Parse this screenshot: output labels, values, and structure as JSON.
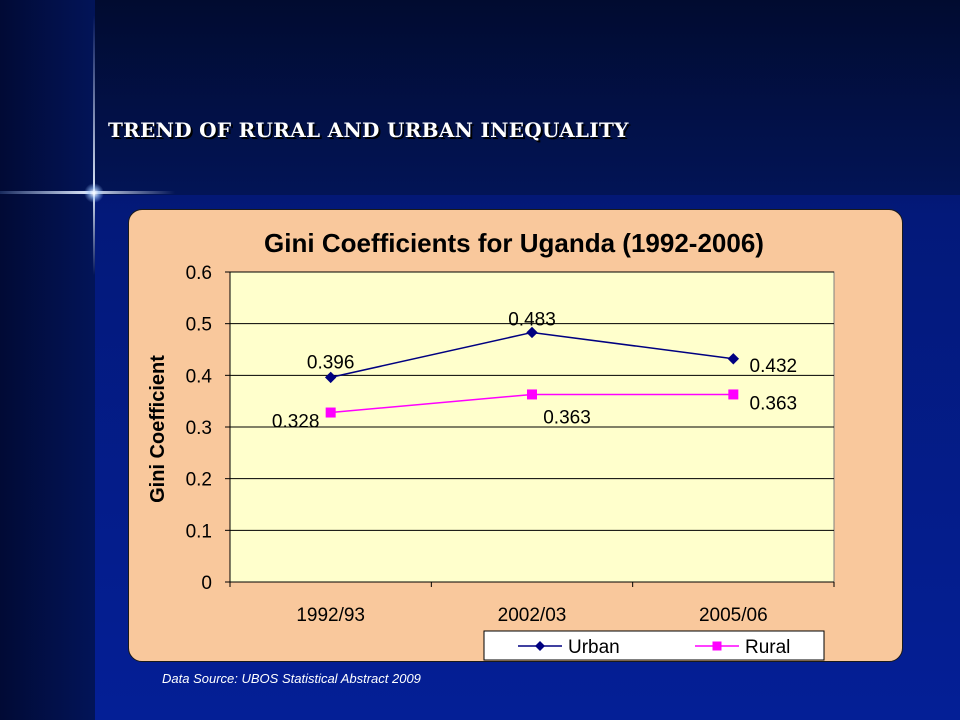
{
  "slide": {
    "title": "TREND OF RURAL AND URBAN INEQUALITY",
    "source": "Data Source: UBOS Statistical Abstract 2009"
  },
  "colors": {
    "urban": "#000080",
    "rural": "#ff00ff",
    "panel": "#f9c89c",
    "plot_area": "#ffffcc"
  },
  "chart_data": {
    "type": "line",
    "title": "Gini Coefficients for Uganda (1992-2006)",
    "xlabel": "",
    "ylabel": "Gini Coefficient",
    "categories": [
      "1992/93",
      "2002/03",
      "2005/06"
    ],
    "ylim": [
      0,
      0.6
    ],
    "yticks": [
      "0",
      "0.1",
      "0.2",
      "0.3",
      "0.4",
      "0.5",
      "0.6"
    ],
    "grid": "horizontal",
    "legend_position": "bottom",
    "series": [
      {
        "name": "Urban",
        "values": [
          0.396,
          0.483,
          0.432
        ],
        "labels": [
          "0.396",
          "0.483",
          "0.432"
        ],
        "marker": "diamond"
      },
      {
        "name": "Rural",
        "values": [
          0.328,
          0.363,
          0.363
        ],
        "labels": [
          "0.328",
          "0.363",
          "0.363"
        ],
        "marker": "square"
      }
    ]
  }
}
